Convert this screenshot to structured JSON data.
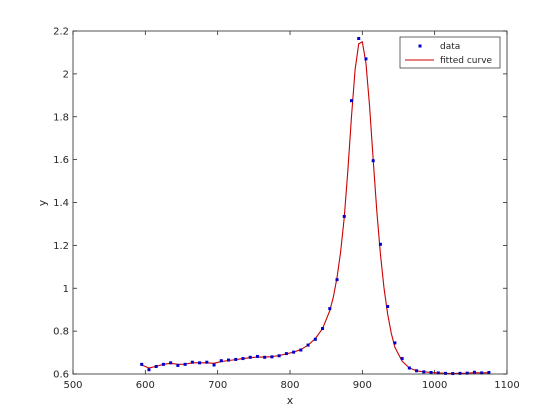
{
  "chart_data": {
    "type": "scatter",
    "title": "",
    "xlabel": "x",
    "ylabel": "y",
    "xlim": [
      500,
      1100
    ],
    "ylim": [
      0.6,
      2.2
    ],
    "xticks": [
      500,
      600,
      700,
      800,
      900,
      1000,
      1100
    ],
    "yticks": [
      0.6,
      0.8,
      1,
      1.2,
      1.4,
      1.6,
      1.8,
      2,
      2.2
    ],
    "grid": false,
    "legend": "top-right",
    "series": [
      {
        "name": "data",
        "kind": "markers",
        "color": "#0000cc",
        "x": [
          595,
          605,
          615,
          625,
          635,
          645,
          655,
          665,
          675,
          685,
          695,
          705,
          715,
          725,
          735,
          745,
          755,
          765,
          775,
          785,
          795,
          805,
          815,
          825,
          835,
          845,
          855,
          865,
          875,
          885,
          895,
          905,
          915,
          925,
          935,
          945,
          955,
          965,
          975,
          985,
          995,
          1005,
          1015,
          1025,
          1035,
          1045,
          1055,
          1065,
          1075
        ],
        "y": [
          0.645,
          0.62,
          0.635,
          0.645,
          0.652,
          0.64,
          0.645,
          0.655,
          0.652,
          0.655,
          0.642,
          0.662,
          0.665,
          0.668,
          0.672,
          0.678,
          0.682,
          0.678,
          0.68,
          0.685,
          0.695,
          0.702,
          0.712,
          0.735,
          0.762,
          0.812,
          0.905,
          1.04,
          1.335,
          1.875,
          2.165,
          2.07,
          1.595,
          1.205,
          0.915,
          0.745,
          0.672,
          0.628,
          0.615,
          0.61,
          0.607,
          0.605,
          0.603,
          0.602,
          0.603,
          0.604,
          0.608,
          0.605,
          0.607
        ]
      },
      {
        "name": "fitted curve",
        "kind": "line",
        "color": "#cc0000",
        "x": [
          595,
          605,
          615,
          625,
          635,
          645,
          655,
          665,
          675,
          685,
          695,
          705,
          715,
          725,
          735,
          745,
          755,
          765,
          775,
          785,
          795,
          805,
          815,
          825,
          835,
          845,
          855,
          860,
          865,
          870,
          875,
          880,
          885,
          890,
          895,
          900,
          905,
          910,
          915,
          920,
          925,
          930,
          935,
          940,
          945,
          955,
          965,
          975,
          985,
          995,
          1005,
          1015,
          1025,
          1035,
          1045,
          1055,
          1065,
          1075
        ],
        "y": [
          0.642,
          0.628,
          0.636,
          0.645,
          0.65,
          0.645,
          0.646,
          0.652,
          0.652,
          0.652,
          0.65,
          0.658,
          0.663,
          0.667,
          0.672,
          0.676,
          0.679,
          0.679,
          0.681,
          0.686,
          0.694,
          0.702,
          0.714,
          0.735,
          0.765,
          0.812,
          0.895,
          0.96,
          1.05,
          1.17,
          1.33,
          1.55,
          1.8,
          2.02,
          2.14,
          2.15,
          2.05,
          1.85,
          1.6,
          1.36,
          1.16,
          1.0,
          0.88,
          0.79,
          0.725,
          0.66,
          0.628,
          0.615,
          0.61,
          0.607,
          0.605,
          0.603,
          0.602,
          0.603,
          0.604,
          0.606,
          0.605,
          0.606
        ]
      }
    ]
  }
}
